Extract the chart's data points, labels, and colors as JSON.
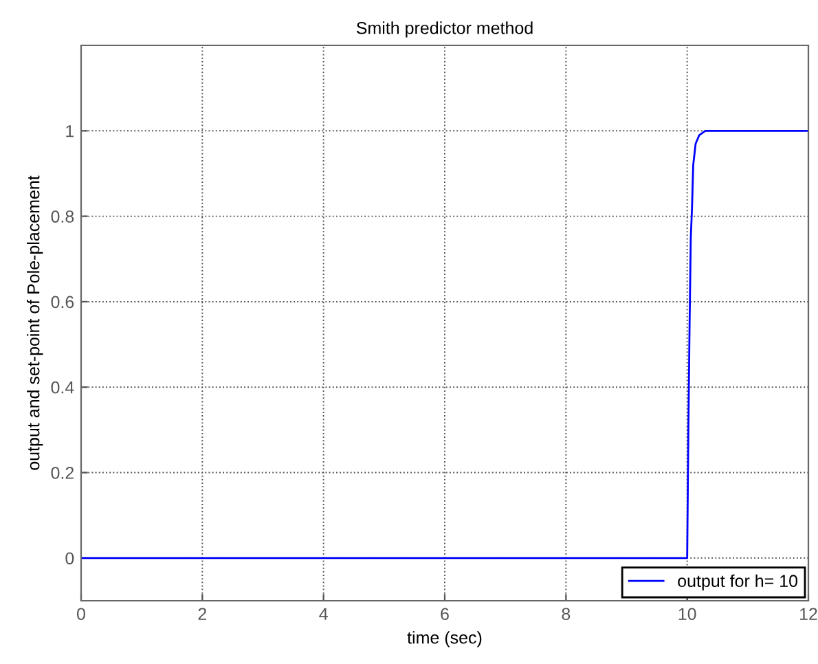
{
  "chart_data": {
    "type": "line",
    "title": "Smith predictor method",
    "xlabel": "time (sec)",
    "ylabel": "output and set-point of Pole-placement",
    "series": [
      {
        "name": "output for h= 10",
        "color": "#0000ff",
        "x": [
          0,
          10.0,
          10.02,
          10.04,
          10.06,
          10.08,
          10.1,
          10.14,
          10.2,
          10.3,
          12
        ],
        "values": [
          0,
          0,
          0.3,
          0.55,
          0.75,
          0.82,
          0.92,
          0.97,
          0.99,
          1.0,
          1.0
        ]
      }
    ],
    "xlim": [
      0,
      12
    ],
    "xticks": [
      0,
      2,
      4,
      6,
      8,
      10,
      12
    ],
    "ylim": [
      -0.1,
      1.2
    ],
    "yticks": [
      0,
      0.2,
      0.4,
      0.6,
      0.8,
      1
    ],
    "grid": true,
    "legend": "bottom right",
    "line_style": "solid",
    "marker": "none"
  }
}
